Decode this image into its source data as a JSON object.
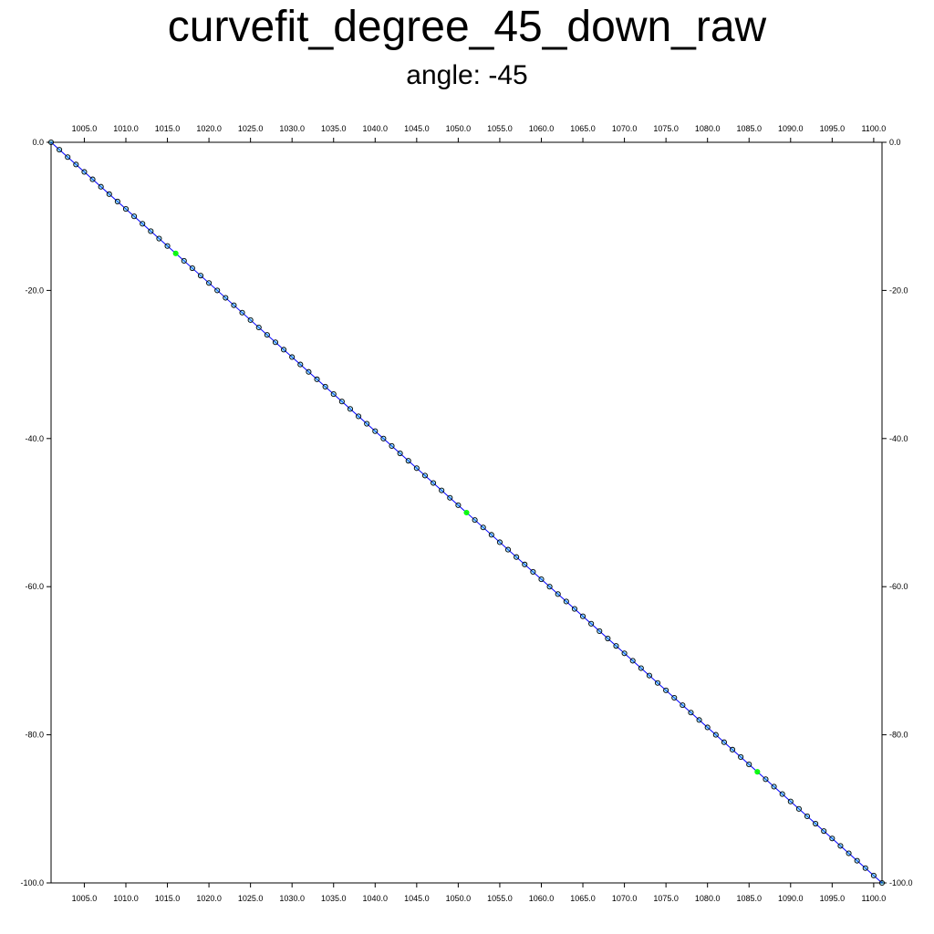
{
  "title": "curvefit_degree_45_down_raw",
  "subtitle": "angle: -45",
  "chart_data": {
    "type": "scatter",
    "title": "curvefit_degree_45_down_raw",
    "subtitle": "angle: -45",
    "xlabel": "",
    "ylabel": "",
    "xlim": [
      1001,
      1101
    ],
    "ylim": [
      -100,
      0
    ],
    "x_ticks": [
      1005,
      1010,
      1015,
      1020,
      1025,
      1030,
      1035,
      1040,
      1045,
      1050,
      1055,
      1060,
      1065,
      1070,
      1075,
      1080,
      1085,
      1090,
      1095,
      1100
    ],
    "x_tick_labels": [
      "1005.0",
      "1010.0",
      "1015.0",
      "1020.0",
      "1025.0",
      "1030.0",
      "1035.0",
      "1040.0",
      "1045.0",
      "1050.0",
      "1055.0",
      "1060.0",
      "1065.0",
      "1070.0",
      "1075.0",
      "1080.0",
      "1085.0",
      "1090.0",
      "1095.0",
      "1100.0"
    ],
    "y_ticks": [
      0,
      -20,
      -40,
      -60,
      -80,
      -100
    ],
    "y_tick_labels": [
      "0.0",
      "-20.0",
      "-40.0",
      "-60.0",
      "-80.0",
      "-100.0"
    ],
    "grid": false,
    "legend": "none",
    "line": {
      "x": [
        1001,
        1101
      ],
      "y": [
        0,
        -100
      ],
      "color": "#0000ff"
    },
    "points": {
      "x_start": 1001,
      "x_end": 1101,
      "y_start": 0,
      "y_end": -100,
      "count": 101,
      "outline_color": "#000000",
      "fill_color": "#00bfff",
      "highlight_indices": [
        15,
        50,
        85
      ],
      "highlight_color": "#00ff00"
    }
  }
}
